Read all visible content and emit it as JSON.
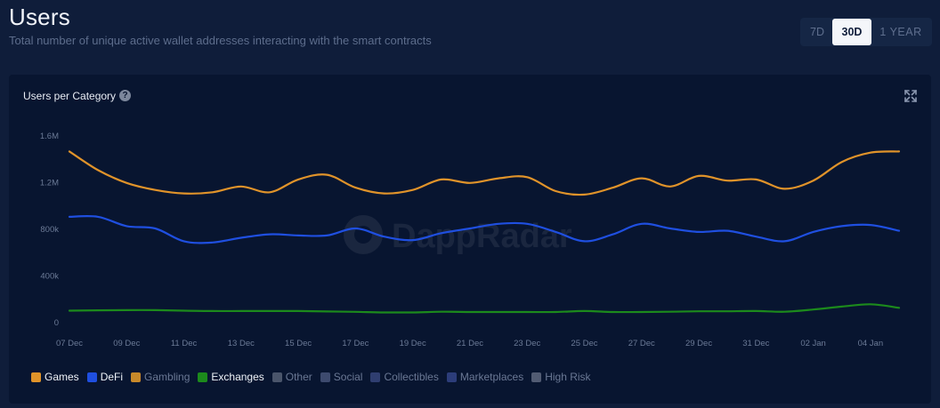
{
  "header": {
    "title": "Users",
    "subtitle": "Total number of unique active wallet addresses interacting with the smart contracts"
  },
  "range": {
    "options": [
      "7D",
      "30D",
      "1 YEAR"
    ],
    "selected": "30D"
  },
  "card": {
    "title": "Users per Category",
    "help_icon": "question-circle-icon",
    "expand_icon": "expand-arrows-icon",
    "watermark": "DappRadar"
  },
  "legend": [
    {
      "label": "Games",
      "color": "#e0932a",
      "active": true
    },
    {
      "label": "DeFi",
      "color": "#1f4fe0",
      "active": true
    },
    {
      "label": "Gambling",
      "color": "#c8892a",
      "active": false
    },
    {
      "label": "Exchanges",
      "color": "#1c8a1c",
      "active": true
    },
    {
      "label": "Other",
      "color": "#4a556b",
      "active": false
    },
    {
      "label": "Social",
      "color": "#3d4a6e",
      "active": false
    },
    {
      "label": "Collectibles",
      "color": "#2f3e70",
      "active": false
    },
    {
      "label": "Marketplaces",
      "color": "#2c3d7a",
      "active": false
    },
    {
      "label": "High Risk",
      "color": "#525c73",
      "active": false
    }
  ],
  "chart_data": {
    "type": "line",
    "title": "Users per Category",
    "xlabel": "",
    "ylabel": "",
    "ylim": [
      0,
      1600000
    ],
    "yticks": [
      "0",
      "400k",
      "800k",
      "1.2M",
      "1.6M"
    ],
    "yticks_values": [
      0,
      400000,
      800000,
      1200000,
      1600000
    ],
    "x": [
      "07 Dec",
      "08 Dec",
      "09 Dec",
      "10 Dec",
      "11 Dec",
      "12 Dec",
      "13 Dec",
      "14 Dec",
      "15 Dec",
      "16 Dec",
      "17 Dec",
      "18 Dec",
      "19 Dec",
      "20 Dec",
      "21 Dec",
      "22 Dec",
      "23 Dec",
      "24 Dec",
      "25 Dec",
      "26 Dec",
      "27 Dec",
      "28 Dec",
      "29 Dec",
      "30 Dec",
      "31 Dec",
      "01 Jan",
      "02 Jan",
      "03 Jan",
      "04 Jan",
      "05 Jan"
    ],
    "xticks": [
      "07 Dec",
      "09 Dec",
      "11 Dec",
      "13 Dec",
      "15 Dec",
      "17 Dec",
      "19 Dec",
      "21 Dec",
      "23 Dec",
      "25 Dec",
      "27 Dec",
      "29 Dec",
      "31 Dec",
      "02 Jan",
      "04 Jan"
    ],
    "grid": false,
    "series": [
      {
        "name": "Games",
        "color": "#e0932a",
        "values": [
          1460000,
          1300000,
          1190000,
          1130000,
          1100000,
          1110000,
          1160000,
          1110000,
          1220000,
          1260000,
          1150000,
          1100000,
          1130000,
          1220000,
          1190000,
          1230000,
          1240000,
          1120000,
          1090000,
          1150000,
          1230000,
          1160000,
          1250000,
          1210000,
          1220000,
          1140000,
          1210000,
          1370000,
          1450000,
          1460000
        ]
      },
      {
        "name": "DeFi",
        "color": "#1f4fe0",
        "values": [
          900000,
          900000,
          820000,
          800000,
          690000,
          680000,
          720000,
          750000,
          740000,
          740000,
          800000,
          730000,
          700000,
          760000,
          800000,
          840000,
          840000,
          770000,
          690000,
          750000,
          840000,
          800000,
          770000,
          780000,
          730000,
          690000,
          770000,
          820000,
          830000,
          780000
        ]
      },
      {
        "name": "Exchanges",
        "color": "#1c8a1c",
        "values": [
          95000,
          98000,
          100000,
          100000,
          95000,
          92000,
          92000,
          92000,
          92000,
          88000,
          85000,
          80000,
          80000,
          86000,
          84000,
          84000,
          84000,
          84000,
          92000,
          84000,
          84000,
          86000,
          90000,
          90000,
          92000,
          86000,
          105000,
          130000,
          150000,
          120000
        ]
      }
    ]
  }
}
